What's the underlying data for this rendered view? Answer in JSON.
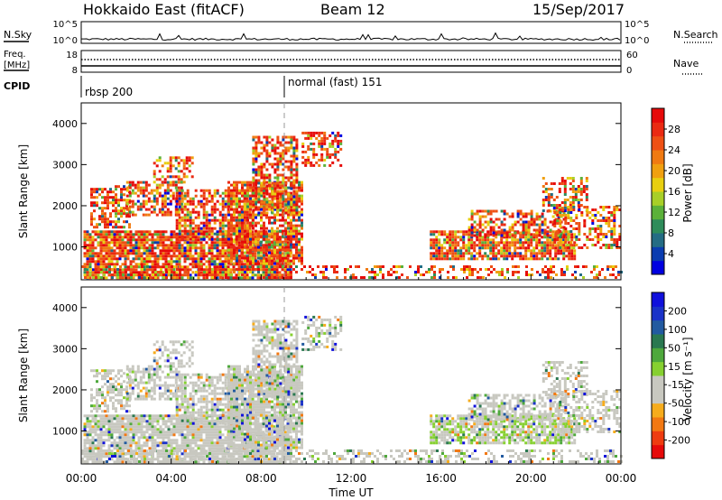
{
  "header": {
    "station": "Hokkaido East (fitACF)",
    "beam": "Beam 12",
    "date": "15/Sep/2017"
  },
  "nsky_panel": {
    "label": "N.Sky",
    "right_label": "N.Search",
    "left_ticks": [
      "10^5",
      "10^0"
    ],
    "right_ticks": [
      "10^5",
      "10^0"
    ]
  },
  "freq_panel": {
    "label_line1": "Freq.",
    "label_line2": "[MHz]",
    "left_ticks": [
      "18",
      "8"
    ],
    "right_ticks": [
      "60",
      "0"
    ],
    "right_label": "Nave"
  },
  "cpid": {
    "label": "CPID",
    "segments": [
      {
        "text": "rbsp 200",
        "start_hour": 0
      },
      {
        "text": "normal (fast) 151",
        "start_hour": 9.0
      }
    ]
  },
  "chart_data": [
    {
      "type": "heatmap",
      "name": "power",
      "ylabel": "Slant Range [km]",
      "ylim": [
        200,
        4500
      ],
      "yticks": [
        1000,
        2000,
        3000,
        4000
      ],
      "xlim": [
        0,
        24
      ],
      "colorbar": {
        "label": "Power [dB]",
        "range": [
          0,
          32
        ],
        "ticks": [
          "4",
          "8",
          "12",
          "16",
          "20",
          "24",
          "28"
        ],
        "colors": [
          "#0000e0",
          "#0a3cb0",
          "#246c84",
          "#2e8c5a",
          "#5bb13a",
          "#a8cf28",
          "#e8cf10",
          "#f0a010",
          "#f07a12",
          "#ee5014",
          "#ea2a12",
          "#e60a0a"
        ]
      },
      "regions": [
        {
          "t": [
            0.1,
            9.3
          ],
          "r": [
            250,
            1400
          ],
          "weight": 0.85
        },
        {
          "t": [
            0.4,
            2.2
          ],
          "r": [
            1500,
            2500
          ],
          "weight": 0.55
        },
        {
          "t": [
            2.0,
            4.5
          ],
          "r": [
            1800,
            2600
          ],
          "weight": 0.55
        },
        {
          "t": [
            3.2,
            5.0
          ],
          "r": [
            2600,
            3200
          ],
          "weight": 0.4
        },
        {
          "t": [
            4.2,
            7.6
          ],
          "r": [
            1200,
            2400
          ],
          "weight": 0.65
        },
        {
          "t": [
            6.5,
            9.8
          ],
          "r": [
            600,
            2600
          ],
          "weight": 0.75
        },
        {
          "t": [
            7.6,
            9.6
          ],
          "r": [
            1800,
            3700
          ],
          "weight": 0.6
        },
        {
          "t": [
            9.8,
            11.5
          ],
          "r": [
            3000,
            3800
          ],
          "weight": 0.5
        },
        {
          "t": [
            15.5,
            22.0
          ],
          "r": [
            700,
            1400
          ],
          "weight": 0.8
        },
        {
          "t": [
            17.2,
            21.5
          ],
          "r": [
            1300,
            1900
          ],
          "weight": 0.55
        },
        {
          "t": [
            20.5,
            22.5
          ],
          "r": [
            1900,
            2700
          ],
          "weight": 0.5
        },
        {
          "t": [
            21.0,
            24.0
          ],
          "r": [
            1000,
            2000
          ],
          "weight": 0.45
        },
        {
          "t": [
            0.0,
            24.0
          ],
          "r": [
            250,
            550
          ],
          "weight": 0.35
        }
      ]
    },
    {
      "type": "heatmap",
      "name": "velocity",
      "ylabel": "Slant Range [km]",
      "ylim": [
        200,
        4500
      ],
      "yticks": [
        1000,
        2000,
        3000,
        4000
      ],
      "xlim": [
        0,
        24
      ],
      "colorbar": {
        "label": "Velocity [m s⁻¹]",
        "range": [
          -250,
          250
        ],
        "ticks": [
          "-200",
          "-100",
          "-50",
          "-15",
          "15",
          "50",
          "100",
          "200"
        ],
        "colors": [
          "#e60a0a",
          "#ee3c10",
          "#f27812",
          "#f6ac1c",
          "#c8c8c0",
          "#c8c8c0",
          "#86d030",
          "#4ea83c",
          "#2a7850",
          "#225aa0",
          "#1a32c8",
          "#1010dc"
        ]
      },
      "regions": [
        {
          "t": [
            0.1,
            9.3
          ],
          "r": [
            250,
            1400
          ],
          "weight": 0.85
        },
        {
          "t": [
            0.4,
            2.2
          ],
          "r": [
            1500,
            2500
          ],
          "weight": 0.55
        },
        {
          "t": [
            2.0,
            4.5
          ],
          "r": [
            1800,
            2600
          ],
          "weight": 0.55
        },
        {
          "t": [
            3.2,
            5.0
          ],
          "r": [
            2600,
            3200
          ],
          "weight": 0.4
        },
        {
          "t": [
            4.2,
            7.6
          ],
          "r": [
            1200,
            2400
          ],
          "weight": 0.65
        },
        {
          "t": [
            6.5,
            9.8
          ],
          "r": [
            600,
            2600
          ],
          "weight": 0.75
        },
        {
          "t": [
            7.6,
            9.6
          ],
          "r": [
            1800,
            3700
          ],
          "weight": 0.6
        },
        {
          "t": [
            9.8,
            11.5
          ],
          "r": [
            3000,
            3800
          ],
          "weight": 0.5
        },
        {
          "t": [
            15.5,
            22.0
          ],
          "r": [
            700,
            1400
          ],
          "weight": 0.8
        },
        {
          "t": [
            17.2,
            21.5
          ],
          "r": [
            1300,
            1900
          ],
          "weight": 0.55
        },
        {
          "t": [
            20.5,
            22.5
          ],
          "r": [
            1900,
            2700
          ],
          "weight": 0.5
        },
        {
          "t": [
            21.0,
            24.0
          ],
          "r": [
            1000,
            2000
          ],
          "weight": 0.45
        },
        {
          "t": [
            0.0,
            24.0
          ],
          "r": [
            250,
            550
          ],
          "weight": 0.35
        }
      ]
    }
  ],
  "x_axis": {
    "label": "Time UT",
    "ticks": [
      "00:00",
      "04:00",
      "08:00",
      "12:00",
      "16:00",
      "20:00",
      "00:00"
    ]
  }
}
